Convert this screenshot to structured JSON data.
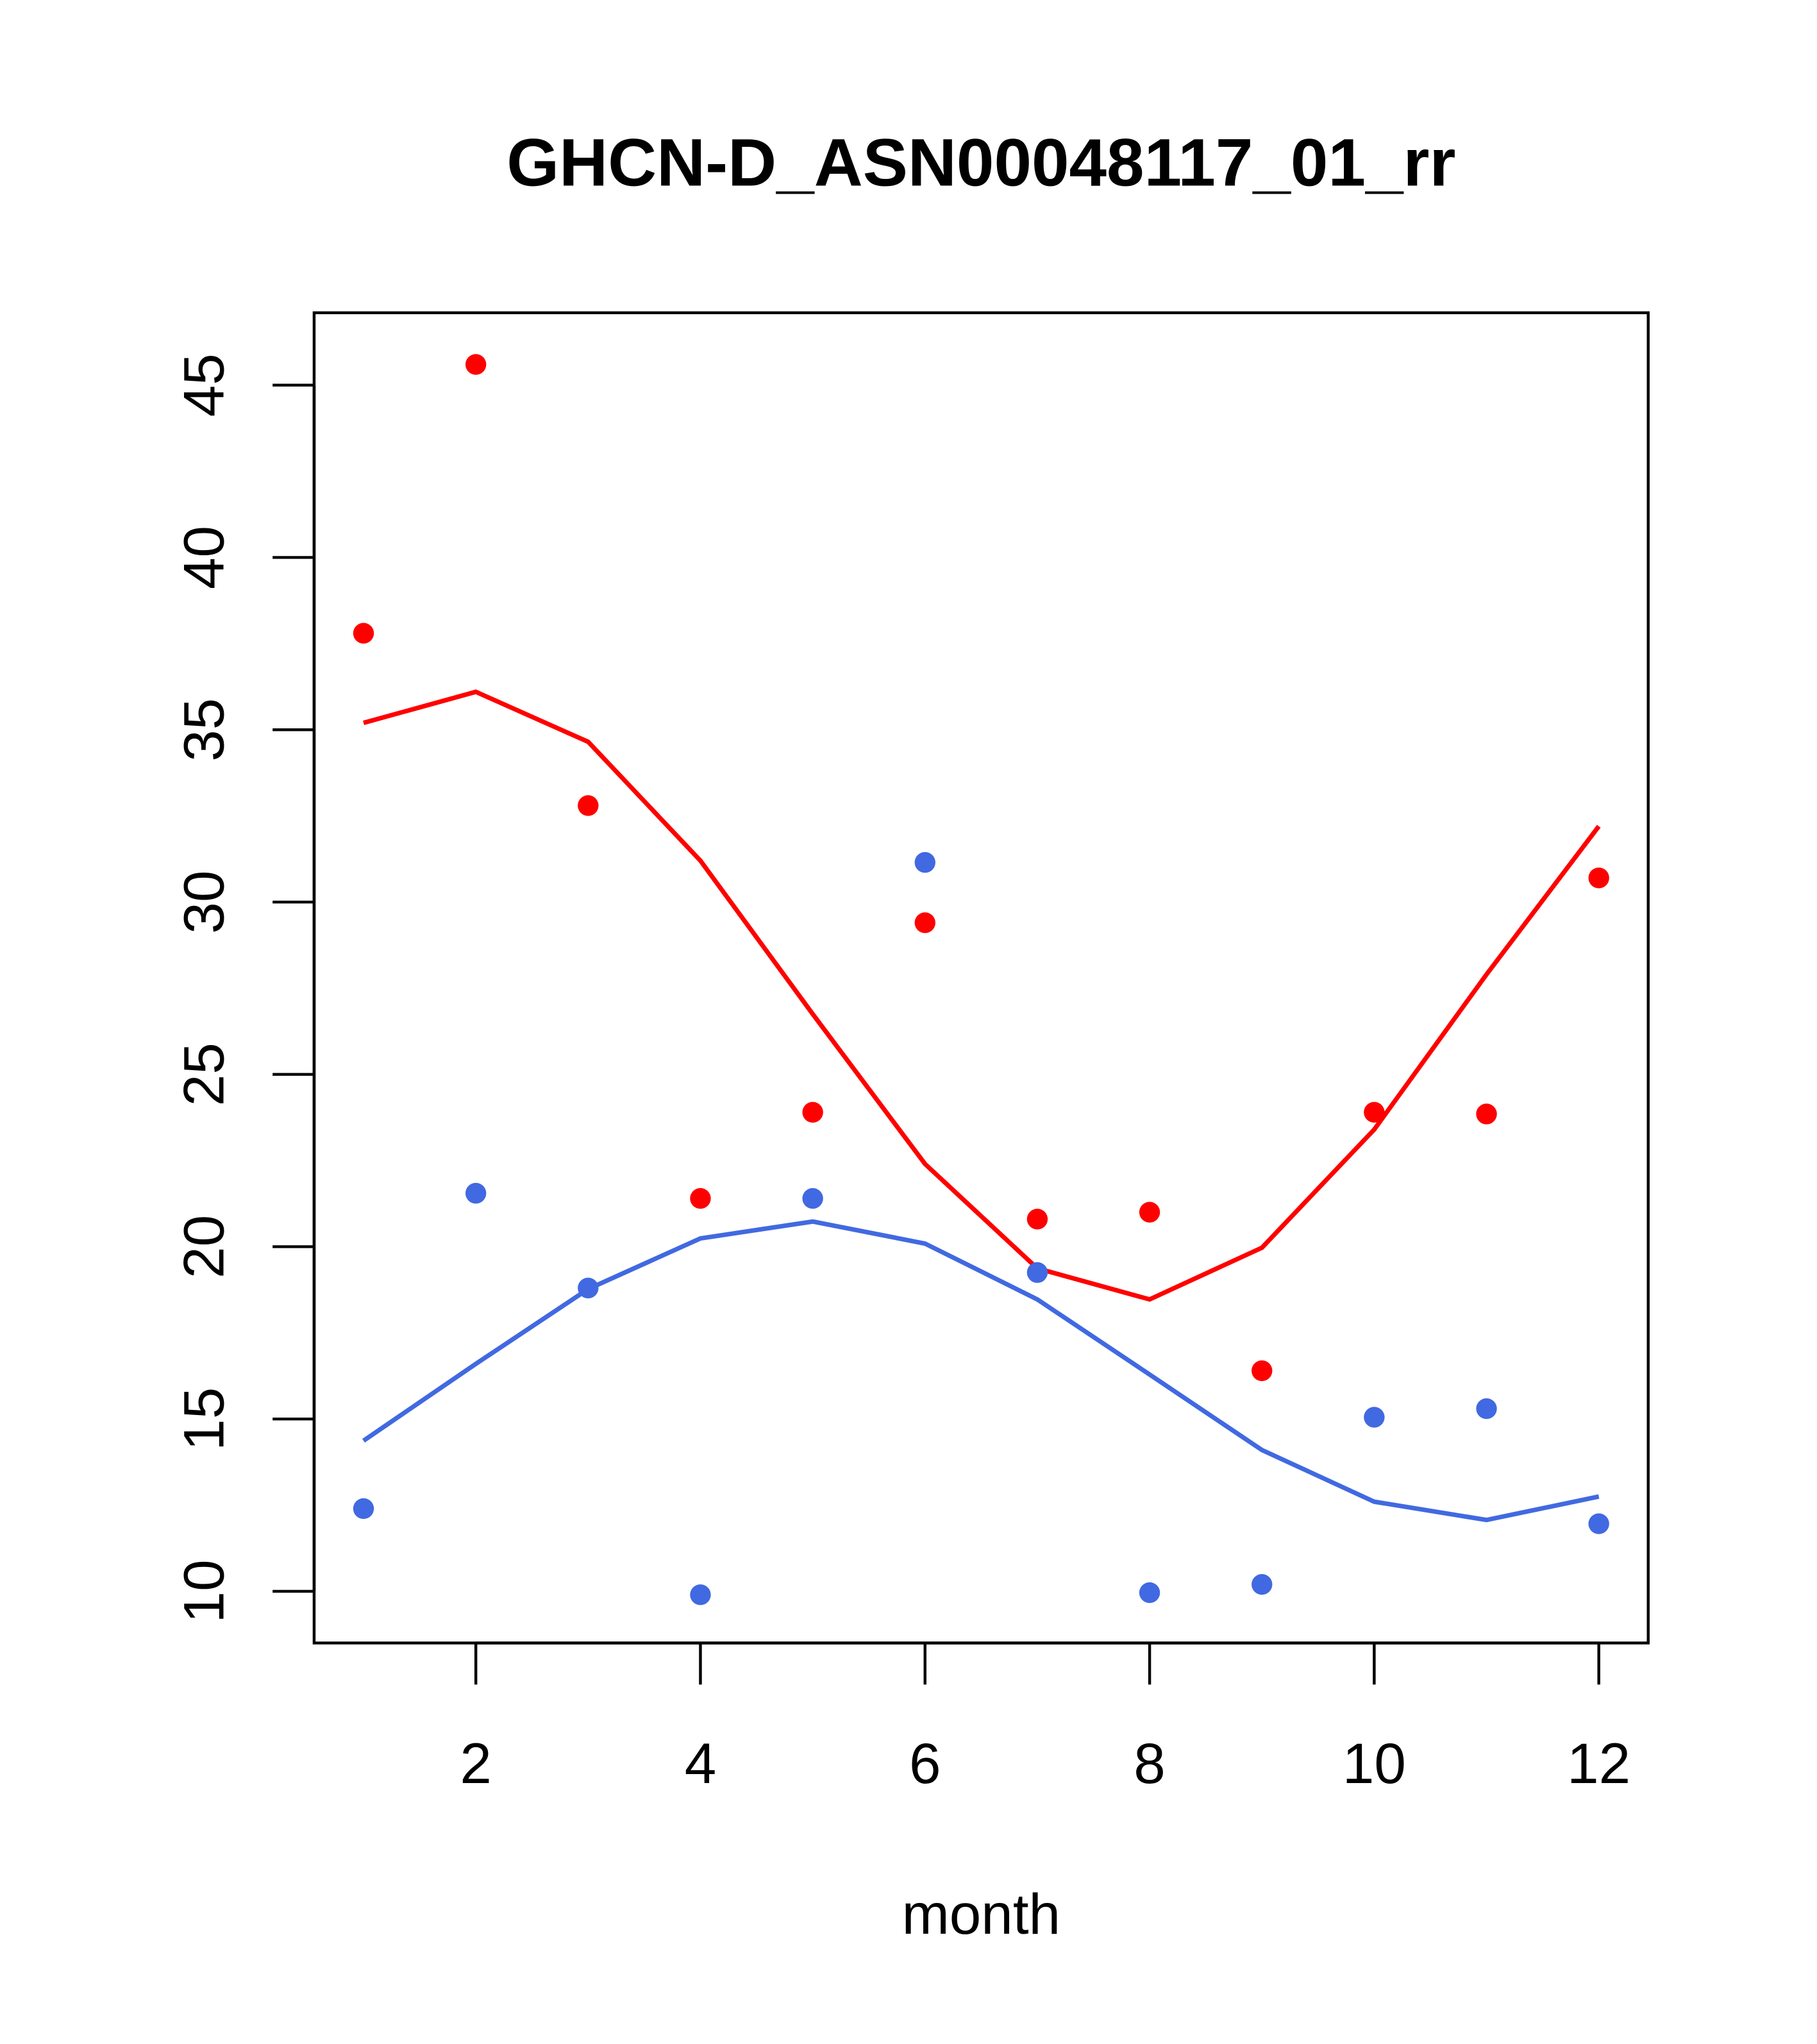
{
  "chart_data": {
    "type": "scatter",
    "title": "GHCN-D_ASN00048117_01_rr",
    "xlabel": "month",
    "ylabel": "",
    "xlim": [
      0.56,
      12.44
    ],
    "ylim": [
      8.5,
      47.1
    ],
    "xticks": [
      2,
      4,
      6,
      8,
      10,
      12
    ],
    "yticks": [
      10,
      15,
      20,
      25,
      30,
      35,
      40,
      45
    ],
    "grid": false,
    "legend": "none",
    "x": [
      1,
      2,
      3,
      4,
      5,
      6,
      7,
      8,
      9,
      10,
      11,
      12
    ],
    "series": [
      {
        "name": "red points",
        "kind": "points",
        "color": "#FF0000",
        "values": [
          37.8,
          45.6,
          32.8,
          21.4,
          23.9,
          29.4,
          20.8,
          21.0,
          16.4,
          23.9,
          23.85,
          30.7
        ]
      },
      {
        "name": "blue points",
        "kind": "points",
        "color": "#4169E1",
        "values": [
          12.4,
          21.55,
          18.8,
          9.9,
          21.4,
          31.15,
          19.25,
          9.96,
          10.2,
          15.05,
          15.3,
          11.96
        ]
      },
      {
        "name": "red line",
        "kind": "line",
        "color": "#FF0000",
        "values": [
          35.2,
          36.1,
          34.65,
          31.2,
          26.75,
          22.4,
          19.37,
          18.47,
          19.97,
          23.4,
          27.9,
          32.2
        ]
      },
      {
        "name": "blue line",
        "kind": "line",
        "color": "#4169E1",
        "values": [
          14.37,
          16.6,
          18.77,
          20.24,
          20.73,
          20.09,
          18.47,
          16.29,
          14.1,
          12.6,
          12.07,
          12.75
        ]
      }
    ]
  }
}
